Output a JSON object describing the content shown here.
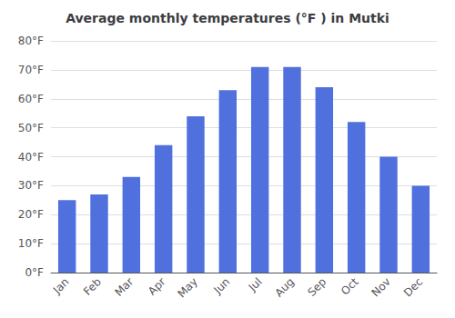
{
  "chart_data": {
    "type": "bar",
    "title": "Average monthly temperatures (°F ) in Mutki",
    "categories": [
      "Jan",
      "Feb",
      "Mar",
      "Apr",
      "May",
      "Jun",
      "Jul",
      "Aug",
      "Sep",
      "Oct",
      "Nov",
      "Dec"
    ],
    "values": [
      25,
      27,
      33,
      44,
      54,
      63,
      71,
      71,
      64,
      52,
      40,
      30
    ],
    "ylim": [
      0,
      80
    ],
    "yticks": [
      {
        "value": 0,
        "label": "0°F"
      },
      {
        "value": 10,
        "label": "10°F"
      },
      {
        "value": 20,
        "label": "20°F"
      },
      {
        "value": 30,
        "label": "30°F"
      },
      {
        "value": 40,
        "label": "40°F"
      },
      {
        "value": 50,
        "label": "50°F"
      },
      {
        "value": 60,
        "label": "60°F"
      },
      {
        "value": 70,
        "label": "70°F"
      },
      {
        "value": 80,
        "label": "80°F"
      }
    ],
    "grid": true
  }
}
